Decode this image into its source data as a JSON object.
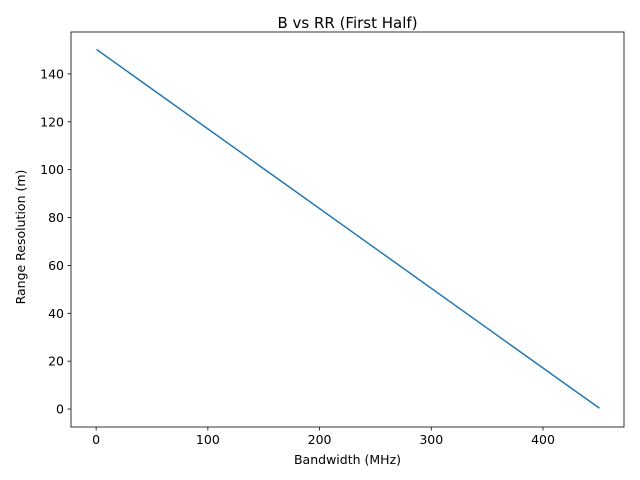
{
  "chart_data": {
    "type": "line",
    "title": "B vs RR (First Half)",
    "xlabel": "Bandwidth (MHz)",
    "ylabel": "Range Resolution (m)",
    "xlim": [
      -22.5,
      472.5
    ],
    "ylim": [
      -7.5,
      157.5
    ],
    "xticks": [
      0,
      100,
      200,
      300,
      400
    ],
    "yticks": [
      0,
      20,
      40,
      60,
      80,
      100,
      120,
      140
    ],
    "grid": false,
    "series": [
      {
        "color": "#1f77b4",
        "x": [
          1,
          450
        ],
        "y": [
          150,
          0.5
        ]
      }
    ]
  }
}
